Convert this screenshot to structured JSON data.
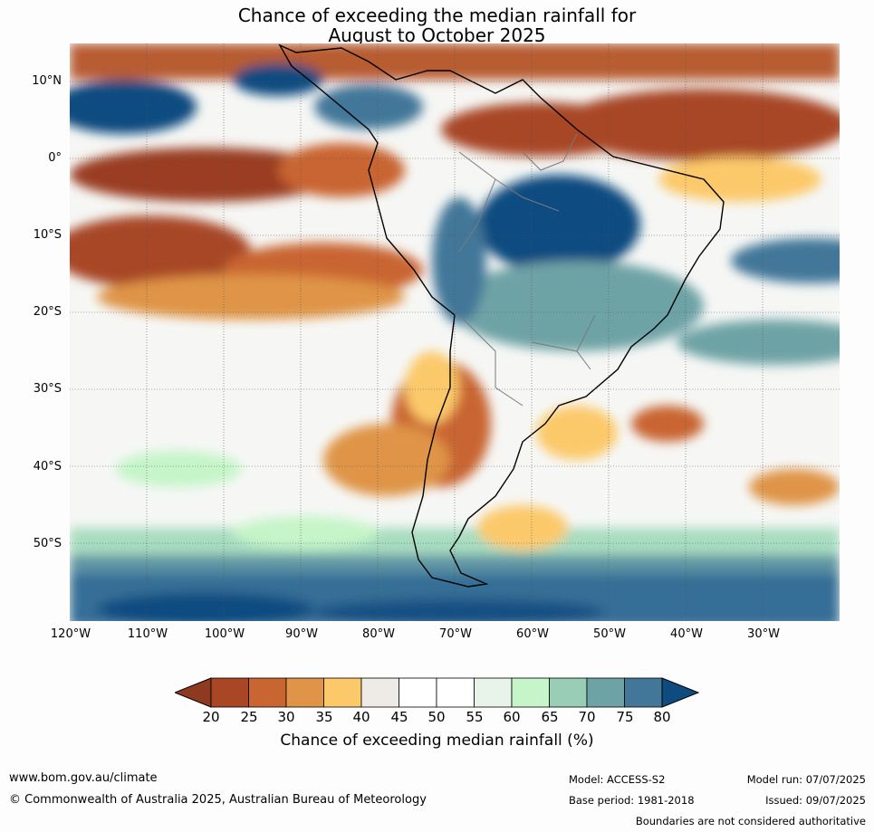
{
  "title_line1": "Chance of exceeding the median rainfall for",
  "title_line2": "August to October 2025",
  "lat_labels": [
    "10°N",
    "0°",
    "10°S",
    "20°S",
    "30°S",
    "40°S",
    "50°S"
  ],
  "lon_labels": [
    "120°W",
    "110°W",
    "100°W",
    "90°W",
    "80°W",
    "70°W",
    "60°W",
    "50°W",
    "40°W",
    "30°W"
  ],
  "colorbar": {
    "ticks": [
      "20",
      "25",
      "30",
      "35",
      "40",
      "45",
      "50",
      "55",
      "60",
      "65",
      "70",
      "75",
      "80"
    ],
    "colors": [
      "#8e3a20",
      "#a84626",
      "#c96530",
      "#df9447",
      "#fcc96a",
      "#eeebe6",
      "#ffffff",
      "#ffffff",
      "#e8f4ea",
      "#c5f5c8",
      "#99cdb6",
      "#6ea3a6",
      "#427799",
      "#0e4c80"
    ],
    "label": "Chance of exceeding median rainfall (%)"
  },
  "footer": {
    "website": "www.bom.gov.au/climate",
    "copyright": "© Commonwealth of Australia 2025, Australian Bureau of Meteorology",
    "model": "Model: ACCESS-S2",
    "base_period": "Base period: 1981-2018",
    "model_run": "Model run: 07/07/2025",
    "issued": "Issued: 09/07/2025",
    "disclaimer": "Boundaries are not considered authoritative"
  }
}
